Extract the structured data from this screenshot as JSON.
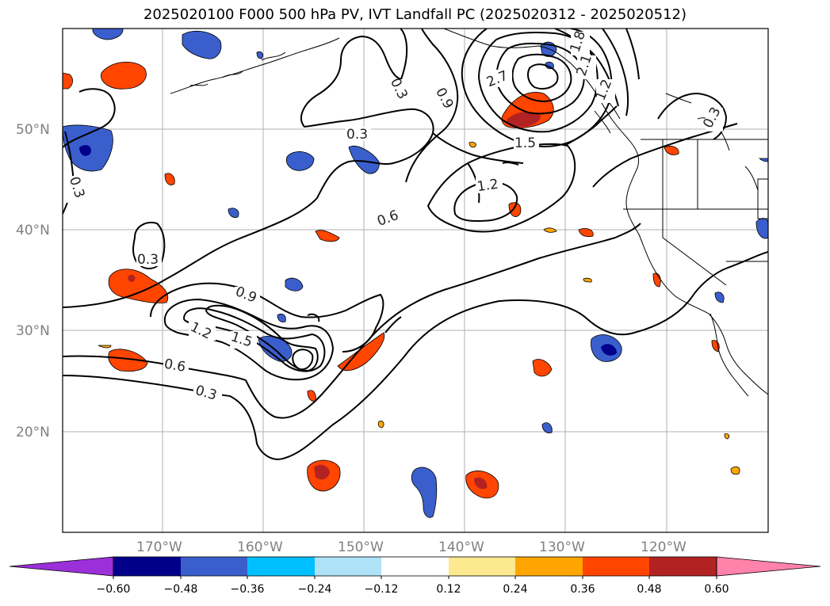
{
  "title": "2025020100 F000 500 hPa PV, IVT Landfall PC (2025020312 - 2025020512)",
  "lat_labels": [
    "50°N",
    "40°N",
    "30°N",
    "20°N"
  ],
  "lon_labels": [
    "170°W",
    "160°W",
    "150°W",
    "140°W",
    "130°W",
    "120°W"
  ],
  "contour_labels": [
    "0.3",
    "0.3",
    "0.3",
    "0.3",
    "0.3",
    "0.3",
    "0.6",
    "0.6",
    "0.9",
    "0.9",
    "1.2",
    "1.2",
    "1.2",
    "1.5",
    "1.5",
    "1.8",
    "2.1",
    "2.7"
  ],
  "colorbar": {
    "ticks": [
      "−0.60",
      "−0.48",
      "−0.36",
      "−0.24",
      "−0.12",
      "0.12",
      "0.24",
      "0.36",
      "0.48",
      "0.60"
    ],
    "colors": [
      "#9b30d9",
      "#00008b",
      "#3a5fcd",
      "#00bfff",
      "#aee2f7",
      "#ffffff",
      "#fde98f",
      "#ffa500",
      "#ff4500",
      "#b22222",
      "#ff82ab"
    ]
  }
}
